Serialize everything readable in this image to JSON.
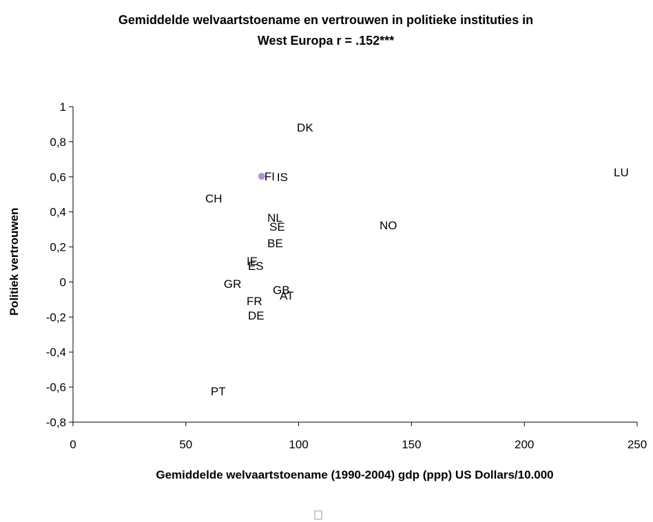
{
  "chart_data": {
    "type": "scatter",
    "title": "Gemiddelde welvaartstoename en vertrouwen in politieke instituties in West Europa r = .152***",
    "x_label": "Gemiddelde welvaartstoename (1990-2004) gdp (ppp) US Dollars/10.000",
    "y_label": "Politiek vertrouwen",
    "labels": [
      "DK",
      "IS",
      "FI",
      "LU",
      "CH",
      "NL",
      "SE",
      "NO",
      "BE",
      "IE",
      "ES",
      "GR",
      "GB",
      "AT",
      "FR",
      "DE",
      "PT"
    ],
    "x": [
      98.0,
      89.1,
      83.6,
      238.4,
      57.4,
      84.9,
      85.8,
      134.6,
      84.9,
      75.7,
      76.3,
      65.6,
      87.3,
      90.4,
      75.7,
      76.3,
      59.8
    ],
    "y": [
      0.882,
      0.599,
      0.603,
      0.627,
      0.477,
      0.367,
      0.316,
      0.324,
      0.222,
      0.12,
      0.092,
      -0.01,
      -0.046,
      -0.077,
      -0.108,
      -0.191,
      -0.623
    ],
    "colors": [
      "none",
      "none",
      "#b58ee0",
      "none",
      "none",
      "none",
      "none",
      "none",
      "none",
      "none",
      "none",
      "none",
      "none",
      "none",
      "none",
      "none",
      "none"
    ],
    "xlim": [
      0,
      250
    ],
    "xticks": [
      0,
      50,
      100,
      150,
      200,
      250
    ],
    "ylim": [
      -0.8,
      1
    ],
    "yticks": [
      {
        "value": -0.8,
        "label": "-0,8"
      },
      {
        "value": -0.6,
        "label": "-0,6"
      },
      {
        "value": -0.4,
        "label": "-0,4"
      },
      {
        "value": -0.2,
        "label": "-0,2"
      },
      0,
      {
        "value": 0.2,
        "label": "0,2"
      },
      {
        "value": 0.4,
        "label": "0,4"
      },
      {
        "value": 0.6,
        "label": "0,6"
      },
      {
        "value": 0.8,
        "label": "0,8"
      },
      1
    ]
  }
}
